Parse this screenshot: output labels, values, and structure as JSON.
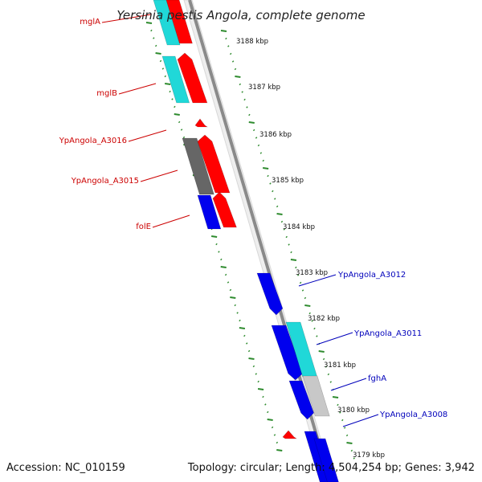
{
  "title": "Yersinia pestis Angola, complete genome",
  "footer": {
    "accession": "Accession: NC_010159",
    "summary": "Topology: circular; Length: 4,504,254 bp; Genes: 3,942"
  },
  "colors": {
    "forward_label": "#cc0000",
    "reverse_label": "#0000bb",
    "dot_ring": "#2e8b2e",
    "backbone": "#8a8a8a",
    "cds_red": "#ff0000",
    "cds_blue": "#0000ee",
    "cds_cyan": "#20d8d8",
    "cds_gray": "#666666",
    "cds_lightgray": "#c8c8c8"
  },
  "kbp_ticks": [
    "3188 kbp",
    "3187 kbp",
    "3186 kbp",
    "3185 kbp",
    "3184 kbp",
    "3183 kbp",
    "3182 kbp",
    "3181 kbp",
    "3180 kbp",
    "3179 kbp"
  ],
  "left_labels": [
    "mglA",
    "mglB",
    "YpAngola_A3016",
    "YpAngola_A3015",
    "folE"
  ],
  "right_labels": [
    "YpAngola_A3012",
    "YpAngola_A3011",
    "fghA",
    "YpAngola_A3008"
  ]
}
